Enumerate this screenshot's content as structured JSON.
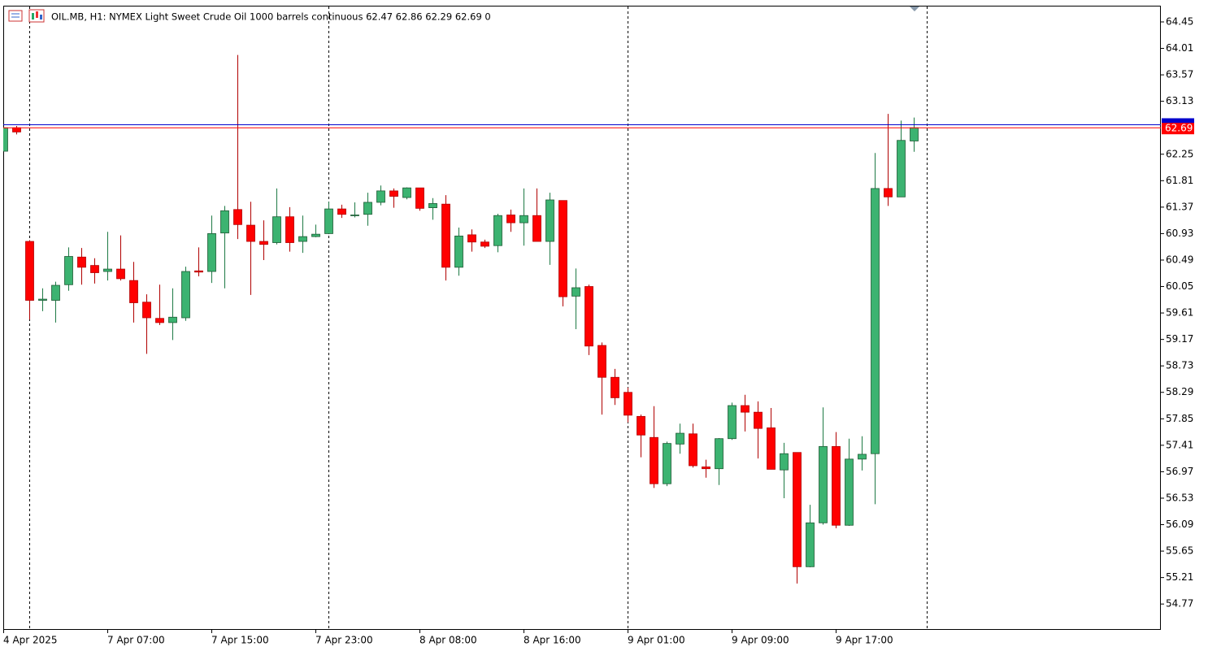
{
  "chart_data": {
    "type": "candlestick",
    "title": "OIL.MB, H1:  NYMEX Light Sweet Crude Oil 1000 barrels continuous  62.47 62.86 62.29 62.69  0",
    "categories": [
      "4 Apr 2025",
      null,
      null,
      null,
      null,
      null,
      null,
      null,
      "7 Apr 07:00",
      null,
      null,
      null,
      null,
      null,
      null,
      null,
      "7 Apr 15:00",
      null,
      null,
      null,
      null,
      null,
      null,
      null,
      "7 Apr 23:00",
      null,
      null,
      null,
      null,
      null,
      null,
      null,
      "8 Apr 08:00",
      null,
      null,
      null,
      null,
      null,
      null,
      null,
      "8 Apr 16:00",
      null,
      null,
      null,
      null,
      null,
      null,
      null,
      "9 Apr 01:00",
      null,
      null,
      null,
      null,
      null,
      null,
      null,
      "9 Apr 09:00",
      null,
      null,
      null,
      null,
      null,
      null,
      null,
      "9 Apr 17:00",
      null,
      null,
      null,
      null,
      null,
      null
    ],
    "open": [
      62.3,
      62.69,
      60.8,
      59.82,
      59.82,
      60.08,
      60.54,
      60.4,
      60.3,
      60.34,
      60.15,
      59.79,
      59.52,
      59.45,
      59.53,
      60.31,
      60.3,
      60.94,
      61.33,
      61.07,
      60.8,
      60.78,
      61.21,
      60.8,
      60.88,
      60.93,
      61.34,
      61.23,
      61.25,
      61.45,
      61.64,
      61.53,
      61.69,
      61.36,
      61.42,
      60.37,
      60.91,
      60.79,
      60.73,
      61.24,
      61.11,
      61.23,
      60.8,
      61.48,
      59.89,
      60.05,
      59.07,
      58.54,
      58.29,
      57.89,
      57.54,
      56.77,
      57.43,
      57.6,
      57.05,
      57.02,
      57.52,
      58.07,
      57.96,
      57.7,
      57.0,
      57.29,
      55.39,
      56.12,
      57.39,
      56.08,
      57.18,
      57.27,
      61.68,
      61.54,
      62.47
    ],
    "high": [
      62.7,
      62.72,
      60.82,
      60.02,
      60.13,
      60.7,
      60.69,
      60.52,
      60.96,
      60.9,
      60.46,
      59.92,
      60.08,
      60.02,
      60.38,
      60.7,
      61.23,
      61.39,
      63.9,
      61.46,
      61.15,
      61.68,
      61.37,
      61.23,
      61.08,
      61.46,
      61.41,
      61.45,
      61.61,
      61.73,
      61.68,
      61.7,
      61.69,
      61.52,
      61.57,
      61.03,
      61.0,
      60.83,
      61.26,
      61.33,
      61.68,
      61.68,
      61.61,
      61.48,
      60.35,
      60.08,
      59.12,
      58.68,
      58.37,
      57.92,
      58.06,
      57.47,
      57.77,
      57.77,
      57.17,
      57.53,
      58.12,
      58.25,
      58.14,
      58.03,
      57.45,
      57.29,
      56.42,
      58.04,
      57.63,
      57.52,
      57.56,
      62.27,
      62.92,
      62.81,
      62.86
    ],
    "low": [
      62.3,
      62.58,
      59.5,
      59.64,
      59.45,
      59.98,
      60.08,
      60.1,
      60.15,
      60.15,
      59.45,
      58.93,
      59.41,
      59.16,
      59.48,
      60.22,
      60.11,
      60.02,
      60.84,
      59.91,
      60.49,
      60.75,
      60.63,
      60.61,
      60.87,
      60.92,
      61.19,
      61.2,
      61.06,
      61.4,
      61.36,
      61.5,
      61.31,
      61.16,
      60.15,
      60.23,
      60.63,
      60.69,
      60.62,
      60.96,
      60.73,
      60.8,
      60.41,
      59.72,
      59.34,
      58.91,
      57.92,
      58.08,
      57.79,
      57.21,
      56.7,
      56.73,
      57.27,
      57.04,
      56.87,
      56.75,
      57.5,
      57.64,
      57.19,
      57.01,
      56.53,
      55.11,
      55.38,
      56.09,
      56.03,
      56.07,
      56.99,
      56.43,
      61.39,
      61.54,
      62.29
    ],
    "close": [
      62.69,
      62.62,
      59.82,
      59.84,
      60.07,
      60.55,
      60.37,
      60.28,
      60.34,
      60.18,
      59.78,
      59.53,
      59.45,
      59.54,
      60.3,
      60.29,
      60.93,
      61.31,
      61.08,
      60.8,
      60.75,
      61.21,
      60.78,
      60.88,
      60.92,
      61.34,
      61.25,
      61.24,
      61.45,
      61.64,
      61.55,
      61.69,
      61.35,
      61.43,
      60.37,
      60.89,
      60.79,
      60.72,
      61.23,
      61.11,
      61.23,
      60.8,
      61.49,
      59.88,
      60.03,
      59.06,
      58.54,
      58.2,
      57.91,
      57.58,
      56.77,
      57.44,
      57.61,
      57.07,
      57.02,
      57.52,
      58.07,
      57.96,
      57.69,
      57.01,
      57.27,
      55.39,
      56.12,
      57.39,
      56.08,
      57.18,
      57.26,
      61.68,
      61.54,
      62.48,
      62.69
    ],
    "up_color": "#3cb371",
    "down_color": "#ff0000",
    "ask_line": 62.74,
    "ask_color": "#0000cc",
    "bid_line": 62.69,
    "bid_color": "#ff0000",
    "ylim": [
      54.34,
      64.72
    ],
    "yticks": [
      64.45,
      64.01,
      63.57,
      63.13,
      62.25,
      61.81,
      61.37,
      60.93,
      60.49,
      60.05,
      59.61,
      59.17,
      58.73,
      58.29,
      57.85,
      57.41,
      56.97,
      56.53,
      56.09,
      55.65,
      55.21,
      54.77
    ]
  }
}
